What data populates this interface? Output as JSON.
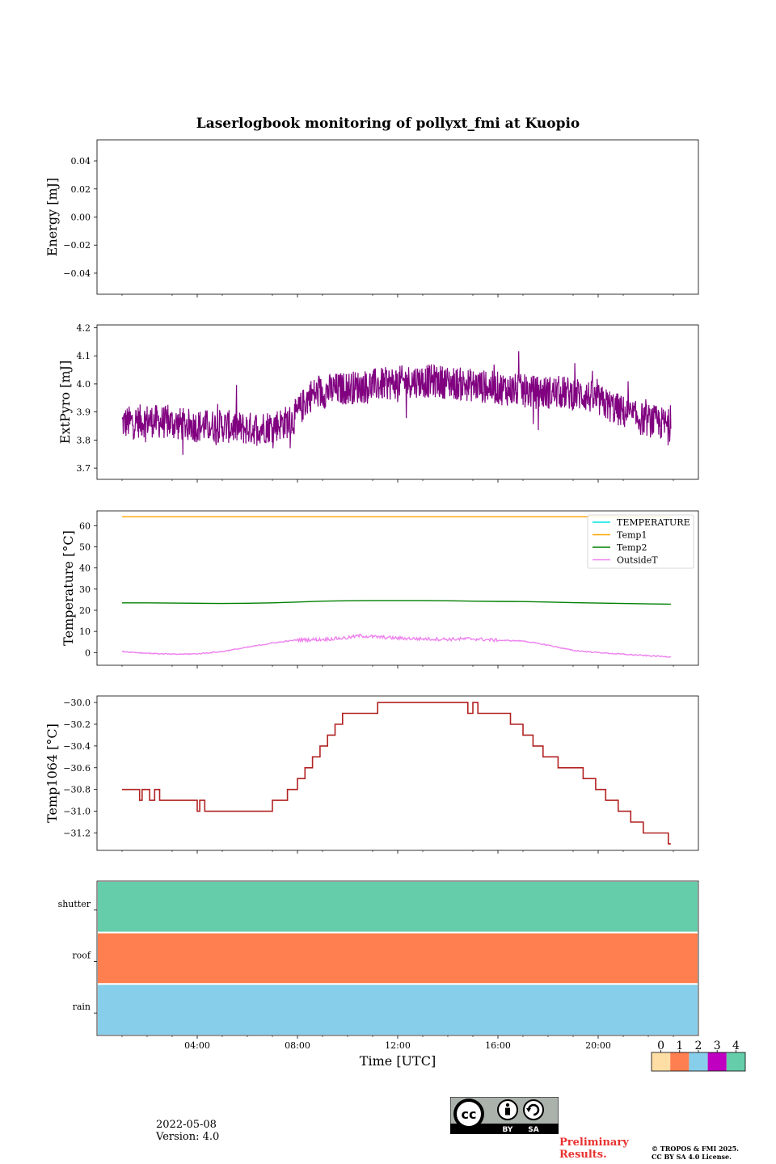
{
  "title": "Laserlogbook monitoring of pollyxt_fmi at Kuopio",
  "footer": {
    "date": "2022-05-08",
    "version": "Version: 4.0",
    "preliminary_line1": "Preliminary",
    "preliminary_line2": "Results.",
    "copyright_line1": "© TROPOS & FMI 2025.",
    "copyright_line2": "CC BY SA 4.0 License.",
    "cc_labels": [
      "cc",
      "BY",
      "SA"
    ]
  },
  "chart_data": [
    {
      "type": "line",
      "id": "energy",
      "ylabel": "Energy [mJ]",
      "ylim": [
        -0.055,
        0.055
      ],
      "yticks": [
        0.04,
        0.02,
        0.0,
        -0.02,
        -0.04
      ],
      "ytick_labels": [
        "0.04",
        "0.02",
        "0.00",
        "−0.02",
        "−0.04"
      ],
      "series": []
    },
    {
      "type": "line",
      "id": "extpyro",
      "ylabel": "ExtPyro [mJ]",
      "ylim": [
        3.66,
        4.21
      ],
      "yticks": [
        4.2,
        4.1,
        4.0,
        3.9,
        3.8,
        3.7
      ],
      "ytick_labels": [
        "4.2",
        "4.1",
        "4.0",
        "3.9",
        "3.8",
        "3.7"
      ],
      "series": [
        {
          "name": "ExtPyro",
          "color": "#800080",
          "x": [
            1.0,
            2.0,
            3.0,
            4.0,
            5.0,
            6.0,
            7.0,
            7.8,
            8.5,
            9.5,
            10.5,
            11.5,
            12.5,
            13.5,
            14.5,
            15.5,
            16.5,
            17.5,
            18.5,
            19.5,
            20.5,
            21.5,
            22.5,
            22.9
          ],
          "values": [
            3.86,
            3.87,
            3.86,
            3.85,
            3.85,
            3.84,
            3.85,
            3.87,
            3.96,
            3.98,
            3.99,
            4.0,
            4.01,
            4.01,
            4.0,
            3.99,
            3.98,
            3.97,
            3.97,
            3.96,
            3.92,
            3.88,
            3.86,
            3.85
          ],
          "noise_amplitude": 0.06
        }
      ]
    },
    {
      "type": "line",
      "id": "temperature",
      "ylabel": "Temperature [°C]",
      "ylim": [
        -6,
        67
      ],
      "yticks": [
        60,
        50,
        40,
        30,
        20,
        10,
        0
      ],
      "ytick_labels": [
        "60",
        "50",
        "40",
        "30",
        "20",
        "10",
        "0"
      ],
      "legend_position": "top-right",
      "series": [
        {
          "name": "TEMPERATURE",
          "color": "#00e5e5",
          "x": [],
          "values": []
        },
        {
          "name": "Temp1",
          "color": "#ffa500",
          "x": [
            1.0,
            22.9
          ],
          "values": [
            64.2,
            64.2
          ]
        },
        {
          "name": "Temp2",
          "color": "#008000",
          "x": [
            1.0,
            2.0,
            3.0,
            4.0,
            5.0,
            6.0,
            7.0,
            8.0,
            9.0,
            10.0,
            11.0,
            12.0,
            13.0,
            14.0,
            15.0,
            16.0,
            17.0,
            18.0,
            19.0,
            20.0,
            21.0,
            22.0,
            22.9
          ],
          "values": [
            23.5,
            23.5,
            23.4,
            23.3,
            23.2,
            23.3,
            23.5,
            23.9,
            24.3,
            24.5,
            24.6,
            24.6,
            24.6,
            24.5,
            24.3,
            24.2,
            24.1,
            23.9,
            23.6,
            23.4,
            23.2,
            23.0,
            22.9
          ]
        },
        {
          "name": "OutsideT",
          "color": "#ee82ee",
          "x": [
            1.0,
            2.0,
            3.0,
            4.0,
            5.0,
            6.0,
            7.0,
            8.0,
            9.0,
            10.0,
            10.5,
            11.0,
            12.0,
            13.0,
            14.0,
            15.0,
            16.0,
            17.0,
            18.0,
            19.0,
            20.0,
            21.0,
            22.0,
            22.9
          ],
          "values": [
            0.5,
            -0.3,
            -0.8,
            -0.6,
            0.5,
            2.5,
            4.5,
            6.0,
            6.2,
            7.0,
            8.0,
            7.5,
            6.8,
            6.5,
            6.3,
            6.5,
            5.8,
            5.5,
            3.5,
            1.0,
            0.0,
            -0.8,
            -1.5,
            -2.0
          ],
          "noise_amplitude": 0.5
        }
      ]
    },
    {
      "type": "line",
      "id": "temp1064",
      "ylabel": "Temp1064 [°C]",
      "ylim": [
        -31.36,
        -29.94
      ],
      "yticks": [
        -30.0,
        -30.2,
        -30.4,
        -30.6,
        -30.8,
        -31.0,
        -31.2
      ],
      "ytick_labels": [
        "−30.0",
        "−30.2",
        "−30.4",
        "−30.6",
        "−30.8",
        "−31.0",
        "−31.2"
      ],
      "series": [
        {
          "name": "Temp1064",
          "color": "#b22222",
          "step": true,
          "x": [
            1.0,
            1.5,
            1.7,
            1.8,
            2.1,
            2.3,
            2.5,
            3.0,
            3.9,
            4.0,
            4.1,
            4.3,
            5.0,
            6.0,
            7.0,
            7.6,
            8.0,
            8.3,
            8.6,
            8.9,
            9.2,
            9.5,
            9.8,
            10.2,
            11.2,
            12.0,
            12.6,
            13.0,
            14.0,
            14.8,
            15.0,
            15.2,
            15.5,
            16.0,
            16.5,
            17.0,
            17.4,
            17.8,
            18.0,
            18.4,
            18.8,
            19.4,
            19.9,
            20.3,
            20.8,
            21.3,
            21.8,
            22.3,
            22.8,
            22.9
          ],
          "values": [
            -30.8,
            -30.8,
            -30.9,
            -30.8,
            -30.9,
            -30.8,
            -30.9,
            -30.9,
            -30.9,
            -31.0,
            -30.9,
            -31.0,
            -31.0,
            -31.0,
            -30.9,
            -30.8,
            -30.7,
            -30.6,
            -30.5,
            -30.4,
            -30.3,
            -30.2,
            -30.1,
            -30.1,
            -30.0,
            -30.0,
            -30.0,
            -30.0,
            -30.0,
            -30.1,
            -30.0,
            -30.1,
            -30.1,
            -30.1,
            -30.2,
            -30.3,
            -30.4,
            -30.5,
            -30.5,
            -30.6,
            -30.6,
            -30.7,
            -30.8,
            -30.9,
            -31.0,
            -31.1,
            -31.2,
            -31.2,
            -31.3,
            -31.3
          ]
        }
      ]
    },
    {
      "type": "heatmap",
      "id": "status",
      "xlabel": "Time [UTC]",
      "xlim": [
        0.0,
        24.0
      ],
      "xticks": [
        4,
        8,
        12,
        16,
        20
      ],
      "xtick_labels": [
        "04:00",
        "08:00",
        "12:00",
        "16:00",
        "20:00"
      ],
      "rows": [
        "shutter",
        "roof",
        "rain"
      ],
      "row_status": [
        4,
        1,
        2
      ],
      "colorbar": {
        "ticks": [
          "0",
          "1",
          "2",
          "3",
          "4"
        ],
        "colors": [
          "#ffdeA6",
          "#ff7f50",
          "#87ceeb",
          "#c000c0",
          "#66cdaa"
        ]
      }
    }
  ]
}
